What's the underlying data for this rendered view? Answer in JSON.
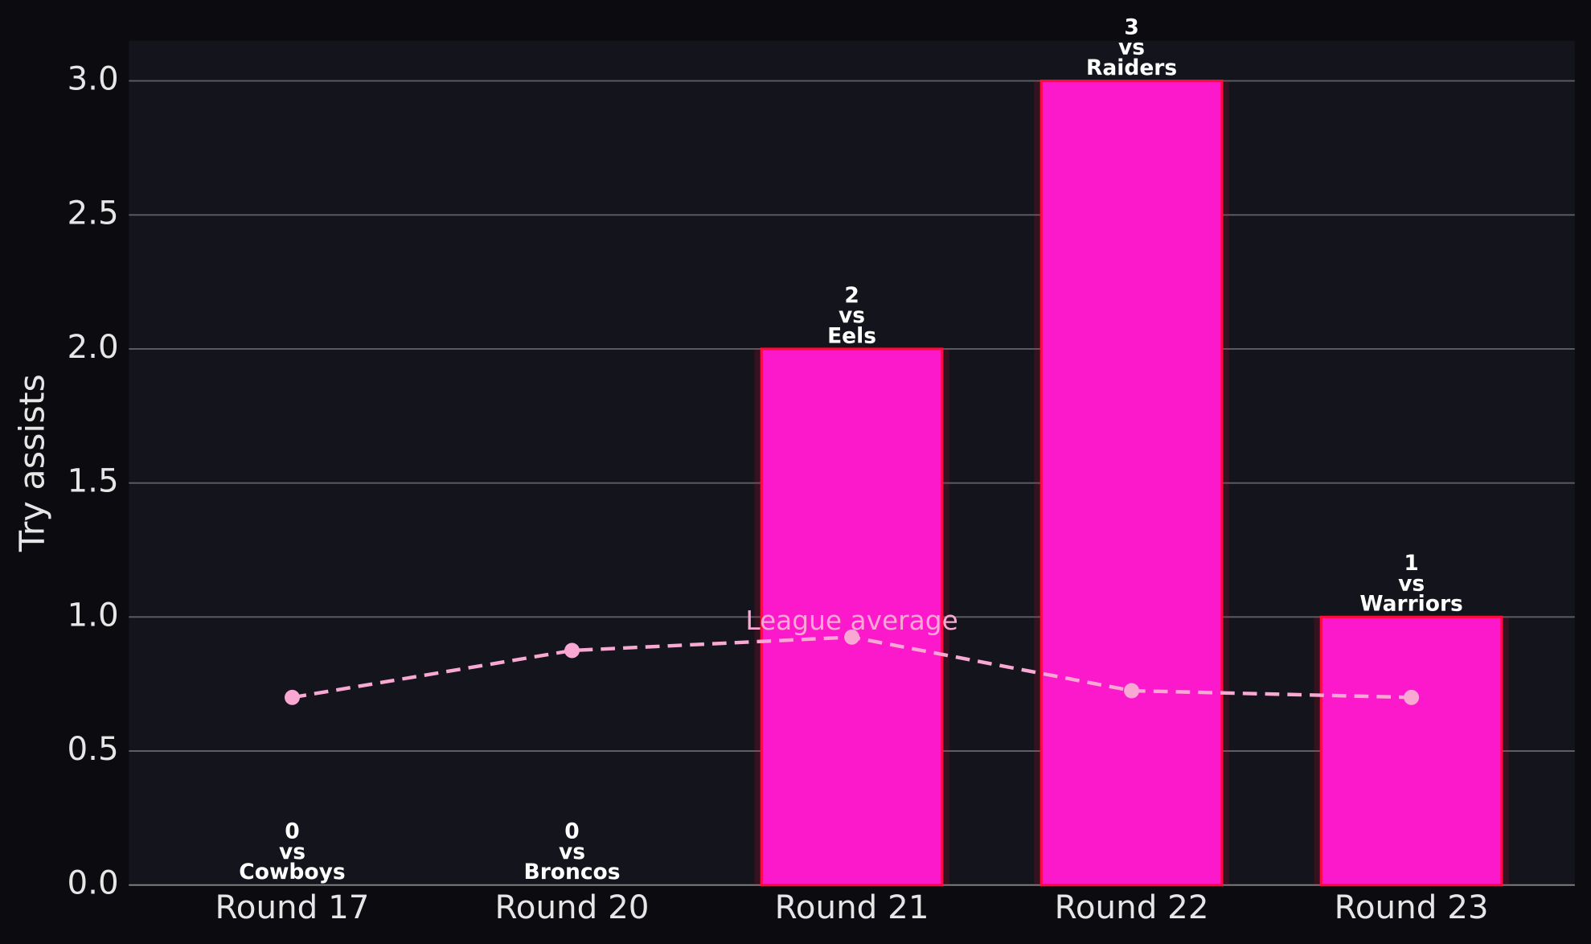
{
  "chart_data": {
    "type": "bar",
    "y_label": "Try assists",
    "categories": [
      "Round 17",
      "Round 20",
      "Round 21",
      "Round 22",
      "Round 23"
    ],
    "values": [
      0,
      0,
      2,
      3,
      1
    ],
    "vs_text": "vs",
    "opponents": [
      "Cowboys",
      "Broncos",
      "Eels",
      "Raiders",
      "Warriors"
    ],
    "color": "#fc19cb",
    "edge_color": "#ff0a3c",
    "average": {
      "label": "League average",
      "values": [
        0.7,
        0.875,
        0.925,
        0.725,
        0.7
      ],
      "color": "#f9a8d4"
    },
    "ylim": [
      0,
      3.15
    ],
    "yticks": [
      {
        "value": 0,
        "label": "0.0"
      },
      0.5,
      {
        "value": 1,
        "label": "1.0"
      },
      1.5,
      {
        "value": 2,
        "label": "2.0"
      },
      2.5,
      {
        "value": 3,
        "label": "3.0"
      }
    ],
    "grid": true
  }
}
